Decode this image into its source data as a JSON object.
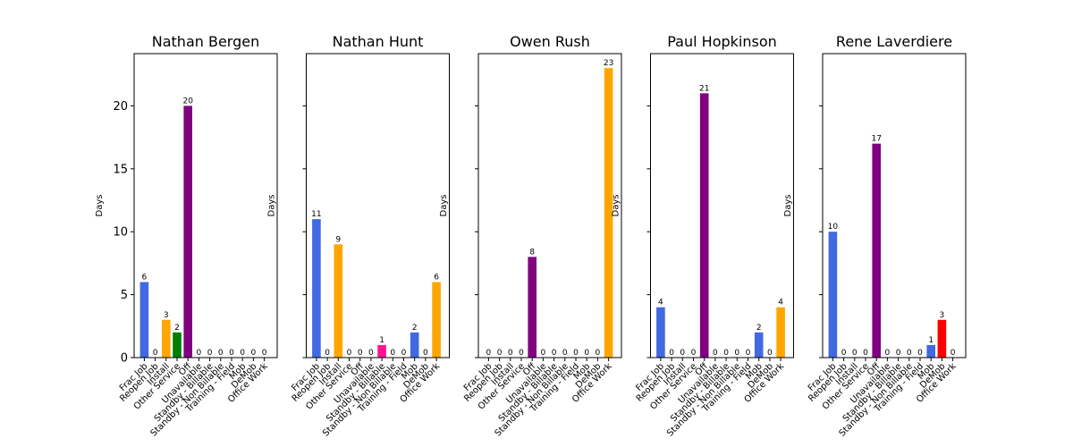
{
  "chart_data": {
    "type": "bar",
    "ylabel": "Days",
    "ylim": [
      0,
      24.15
    ],
    "yticks": [
      0,
      5,
      10,
      15,
      20
    ],
    "categories": [
      "Frac Job",
      "Reopen Job",
      "Install",
      "Other Service",
      "Off",
      "Unavailable",
      "Standby - Billable",
      "Standby - Non Billable",
      "Training - Field",
      "Mob",
      "DeMob",
      "Office Work"
    ],
    "category_colors": [
      "#4169e1",
      "#4169e1",
      "#ffa500",
      "#008000",
      "#800080",
      "#ffffff",
      "#ffffff",
      "#ff1493",
      "#ffffff",
      "#4169e1",
      "#ff0000",
      "#ffa500"
    ],
    "panels": [
      {
        "title": "Nathan Bergen",
        "values": [
          6,
          0,
          3,
          2,
          20,
          0,
          0,
          0,
          0,
          0,
          0,
          0
        ]
      },
      {
        "title": "Nathan Hunt",
        "values": [
          11,
          0,
          9,
          0,
          0,
          0,
          1,
          0,
          0,
          2,
          0,
          6
        ]
      },
      {
        "title": "Owen Rush",
        "values": [
          0,
          0,
          0,
          0,
          8,
          0,
          0,
          0,
          0,
          0,
          0,
          23
        ]
      },
      {
        "title": "Paul Hopkinson",
        "values": [
          4,
          0,
          0,
          0,
          21,
          0,
          0,
          0,
          0,
          2,
          0,
          4
        ]
      },
      {
        "title": "Rene Laverdiere",
        "values": [
          10,
          0,
          0,
          0,
          17,
          0,
          0,
          0,
          0,
          1,
          3,
          0
        ]
      }
    ],
    "bar_color_overrides": [
      {
        "panel": 1,
        "index": 6,
        "color": "#ff1493"
      }
    ]
  }
}
